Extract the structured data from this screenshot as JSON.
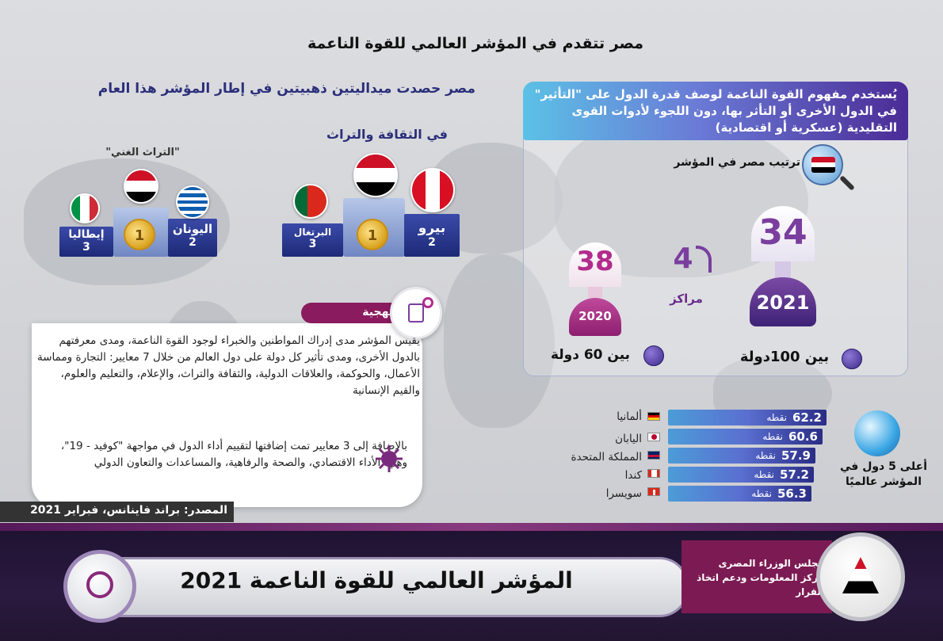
{
  "main_title": "مصر تتقدم في المؤشر العالمي للقوة الناعمة",
  "medals": {
    "title": "مصر حصدت ميداليتين ذهبيتين  في إطار المؤشر هذا العام",
    "culture_label": "في الثقافة والتراث",
    "heritage_label": "\"التراث الغني\"",
    "podium_culture": {
      "first": "1",
      "second_name": "بيرو",
      "second_rank": "2",
      "third_name": "البرتغال",
      "third_rank": "3"
    },
    "podium_heritage": {
      "first": "1",
      "second_name": "اليونان",
      "second_rank": "2",
      "third_name": "إيطاليا",
      "third_rank": "3"
    }
  },
  "concept": "يُستخدم مفهوم القوة الناعمة لوصف قدرة الدول على \"التأثير\" في الدول الأخرى أو التأثر بها، دون اللجوء لأدوات القوى التقليدية (عسكرية أو اقتصادية)",
  "ranking": {
    "label": "ترتيب مصر في المؤشر",
    "rank_2021": "34",
    "year_2021": "2021",
    "among_2021": "بين 100دولة",
    "rank_2020": "38",
    "year_2020": "2020",
    "among_2020": "بين 60 دولة",
    "improvement": "4",
    "improvement_label": "مراكز"
  },
  "methodology": {
    "label": "المنهجية",
    "text": "يقيس المؤشر مدى إدراك المواطنين والخبراء لوجود القوة الناعمة، ومدى معرفتهم بالدول الأخرى، ومدى تأثير كل دولة على دول العالم من خلال 7 معايير: التجارة ومماسة الأعمال، والحوكمة، والعلاقات الدولية، والثقافة والتراث، والإعلام، والتعليم والعلوم، والقيم الإنسانية",
    "covid_text": "بالإضافة إلى 3 معايير تمت إضافتها لتقييم أداء الدول في مواجهة \"كوفيد - 19\"، وهي: الأداء الاقتصادي، والصحة والرفاهية، والمساعدات والتعاون الدولي"
  },
  "source": "المصدر: براند فاينانس، فبراير 2021",
  "top5": {
    "label": "أعلى 5 دول في المؤشر عالميًا",
    "unit": "نقطه",
    "countries": [
      {
        "name": "ألمانيا",
        "score": "62.2"
      },
      {
        "name": "اليابان",
        "score": "60.6"
      },
      {
        "name": "المملكة المتحدة",
        "score": "57.9"
      },
      {
        "name": "كندا",
        "score": "57.2"
      },
      {
        "name": "سويسرا",
        "score": "56.3"
      }
    ]
  },
  "footer": {
    "title": "المؤشر العالمي للقوة الناعمة 2021",
    "cabinet_line1": "مجلس الوزراء المصرى",
    "cabinet_line2": "مركز المعلومات ودعم اتخاذ القرار"
  },
  "colors": {
    "navy": "#2b2f7a",
    "purple": "#7a3e9e",
    "magenta": "#b22c8c",
    "maroon": "#7c1b53"
  }
}
